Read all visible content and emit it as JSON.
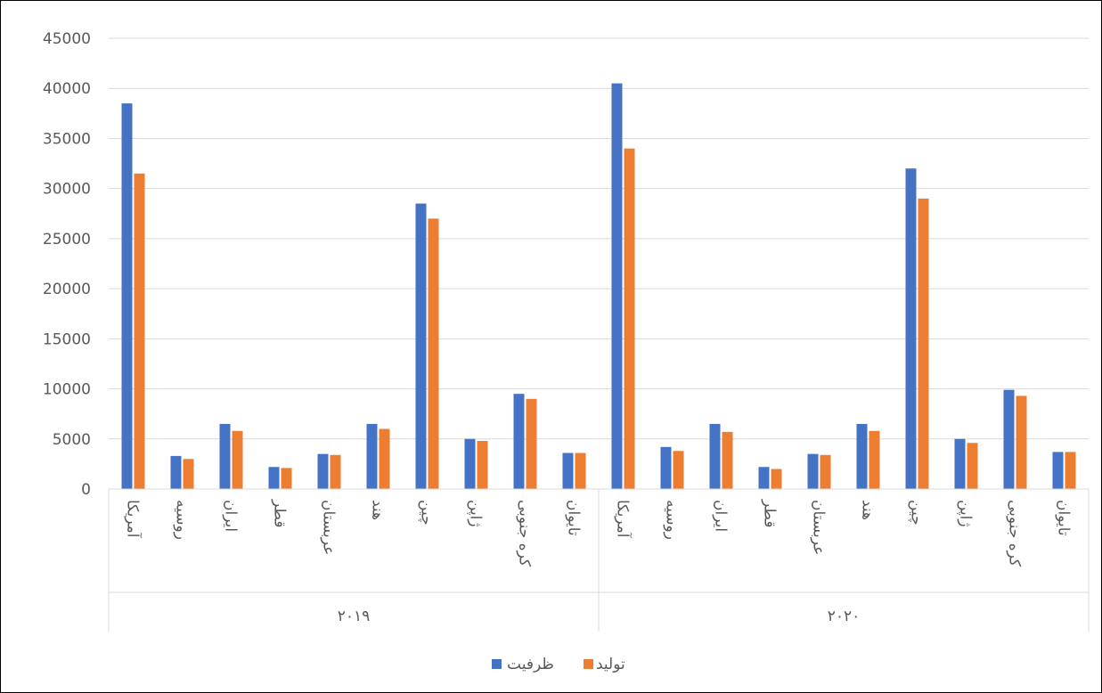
{
  "chart_data": {
    "type": "bar",
    "ylim": [
      0,
      45000
    ],
    "yticks": [
      0,
      5000,
      10000,
      15000,
      20000,
      25000,
      30000,
      35000,
      40000,
      45000
    ],
    "grid": true,
    "legend_position": "bottom",
    "groups": [
      {
        "label": "۲۰۱۹",
        "categories": [
          "آمریکا",
          "روسیه",
          "ایران",
          "قطر",
          "عربستان",
          "هند",
          "چین",
          "ژاپن",
          "کره جنوبی",
          "تایوان"
        ]
      },
      {
        "label": "۲۰۲۰",
        "categories": [
          "آمریکا",
          "روسیه",
          "ایران",
          "قطر",
          "عربستان",
          "هند",
          "چین",
          "ژاپن",
          "کره جنوبی",
          "تایوان"
        ]
      }
    ],
    "series": [
      {
        "name": "ظرفیت",
        "color": "#4472C4",
        "values": [
          38500,
          3300,
          6500,
          2200,
          3500,
          6500,
          28500,
          5000,
          9500,
          3600,
          40500,
          4200,
          6500,
          2200,
          3500,
          6500,
          32000,
          5000,
          9900,
          3700
        ]
      },
      {
        "name": "تولید",
        "color": "#ED7D31",
        "values": [
          31500,
          3000,
          5800,
          2100,
          3400,
          6000,
          27000,
          4800,
          9000,
          3600,
          34000,
          3800,
          5700,
          2000,
          3400,
          5800,
          29000,
          4600,
          9300,
          3700
        ]
      }
    ]
  }
}
